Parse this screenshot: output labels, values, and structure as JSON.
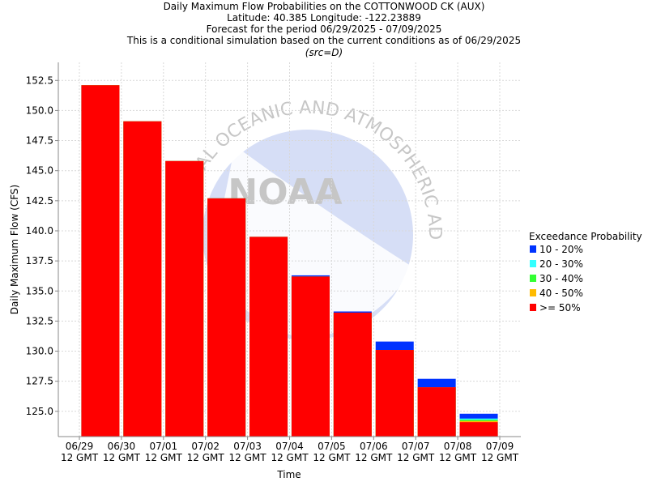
{
  "titles": {
    "line1": "Daily Maximum Flow Probabilities on the COTTONWOOD CK (AUX)",
    "line2": "Latitude: 40.385 Longitude: -122.23889",
    "line3": "Forecast for the period 06/29/2025 - 07/09/2025",
    "line4": "This is a conditional simulation based on the current conditions as of 06/29/2025",
    "line5": "(src=D)"
  },
  "watermark": {
    "logo_text": "NOAA",
    "ring_text": "NATIONAL OCEANIC AND ATMOSPHERIC ADMINISTRATION"
  },
  "legend": {
    "title": "Exceedance Probability",
    "items": [
      {
        "label": "10 - 20%",
        "color": "#0033ff"
      },
      {
        "label": "20 - 30%",
        "color": "#33ffff"
      },
      {
        "label": "30 - 40%",
        "color": "#33ff33"
      },
      {
        "label": "40 - 50%",
        "color": "#ffbb00"
      },
      {
        "label": ">= 50%",
        "color": "#ff0000"
      }
    ]
  },
  "chart_data": {
    "type": "bar",
    "title": "Daily Maximum Flow Probabilities on the COTTONWOOD CK (AUX)",
    "xlabel": "Time",
    "ylabel": "Daily Maximum Flow (CFS)",
    "ylim": [
      122.9,
      154.0
    ],
    "yticks": [
      125.0,
      127.5,
      130.0,
      132.5,
      135.0,
      137.5,
      140.0,
      142.5,
      145.0,
      147.5,
      150.0,
      152.5
    ],
    "ytick_labels": [
      "125.0",
      "127.5",
      "130.0",
      "132.5",
      "135.0",
      "137.5",
      "140.0",
      "142.5",
      "145.0",
      "147.5",
      "150.0",
      "152.5"
    ],
    "grid": true,
    "legend_position": "right",
    "x_tick_labels": [
      [
        "06/29",
        "12 GMT"
      ],
      [
        "06/30",
        "12 GMT"
      ],
      [
        "07/01",
        "12 GMT"
      ],
      [
        "07/02",
        "12 GMT"
      ],
      [
        "07/03",
        "12 GMT"
      ],
      [
        "07/04",
        "12 GMT"
      ],
      [
        "07/05",
        "12 GMT"
      ],
      [
        "07/06",
        "12 GMT"
      ],
      [
        "07/07",
        "12 GMT"
      ],
      [
        "07/08",
        "12 GMT"
      ],
      [
        "07/09",
        "12 GMT"
      ]
    ],
    "categories": [
      "06/29",
      "06/30",
      "07/01",
      "07/02",
      "07/03",
      "07/04",
      "07/05",
      "07/06",
      "07/07",
      "07/08"
    ],
    "series": [
      {
        "name": ">= 50%",
        "color": "#ff0000",
        "values": [
          152.1,
          149.1,
          145.8,
          142.7,
          139.5,
          136.2,
          133.2,
          130.1,
          127.0,
          124.1
        ]
      },
      {
        "name": "40 - 50%",
        "color": "#ffbb00",
        "values": [
          152.1,
          149.1,
          145.8,
          142.7,
          139.5,
          136.2,
          133.2,
          130.1,
          127.0,
          124.2
        ]
      },
      {
        "name": "30 - 40%",
        "color": "#33ff33",
        "values": [
          152.1,
          149.1,
          145.8,
          142.7,
          139.5,
          136.2,
          133.2,
          130.1,
          127.0,
          124.3
        ]
      },
      {
        "name": "20 - 30%",
        "color": "#33ffff",
        "values": [
          152.1,
          149.1,
          145.8,
          142.7,
          139.5,
          136.2,
          133.2,
          130.1,
          127.0,
          124.4
        ]
      },
      {
        "name": "10 - 20%",
        "color": "#0033ff",
        "values": [
          152.1,
          149.1,
          145.8,
          142.7,
          139.5,
          136.3,
          133.3,
          130.8,
          127.7,
          124.8
        ]
      }
    ]
  }
}
